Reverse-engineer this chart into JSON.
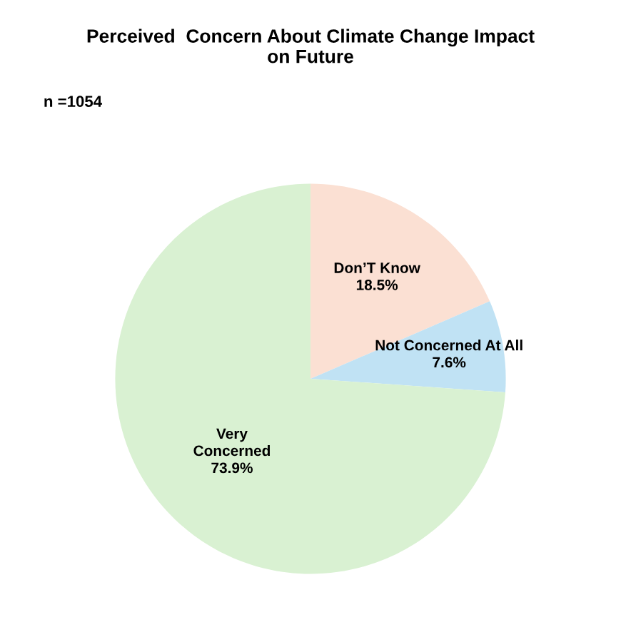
{
  "chart_data": {
    "type": "pie",
    "title": "Perceived  Concern About Climate Change Impact\non Future",
    "annotations": [
      "n =1054"
    ],
    "categories": [
      "Don’T Know",
      "Not Concerned At All",
      "Very\nConcerned"
    ],
    "values": [
      18.5,
      7.6,
      73.9
    ],
    "value_labels": [
      "18.5%",
      "7.6%",
      "73.9%"
    ],
    "colors": [
      "#fbe0d3",
      "#c0e2f4",
      "#d9f1d2"
    ]
  }
}
